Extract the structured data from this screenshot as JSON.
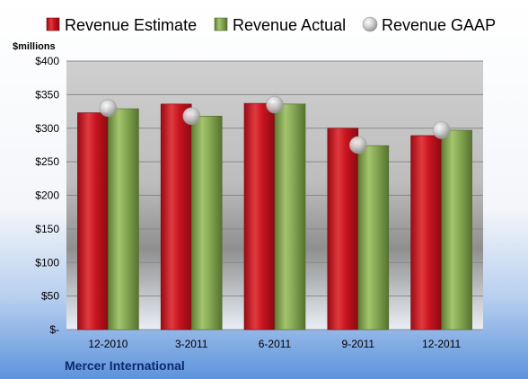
{
  "chart_data": {
    "type": "bar",
    "categories": [
      "12-2010",
      "3-2011",
      "6-2011",
      "9-2011",
      "12-2011"
    ],
    "series": [
      {
        "name": "Revenue Estimate",
        "type": "bar",
        "color": "#c0101c",
        "values": [
          323,
          336,
          337,
          300,
          289
        ]
      },
      {
        "name": "Revenue Actual",
        "type": "bar",
        "color": "#7ea04a",
        "values": [
          329,
          318,
          336,
          274,
          297
        ]
      },
      {
        "name": "Revenue GAAP",
        "type": "scatter",
        "color": "#bfbfbf",
        "values": [
          330,
          318,
          335,
          275,
          297
        ]
      }
    ],
    "ylim": [
      0,
      400
    ],
    "yticks": [
      0,
      50,
      100,
      150,
      200,
      250,
      300,
      350,
      400
    ],
    "ytick_labels": [
      "$-",
      "$50",
      "$100",
      "$150",
      "$200",
      "$250",
      "$300",
      "$350",
      "$400"
    ],
    "ylabel": "$millions",
    "legend_position": "top",
    "grid": true
  },
  "company": "Mercer International"
}
